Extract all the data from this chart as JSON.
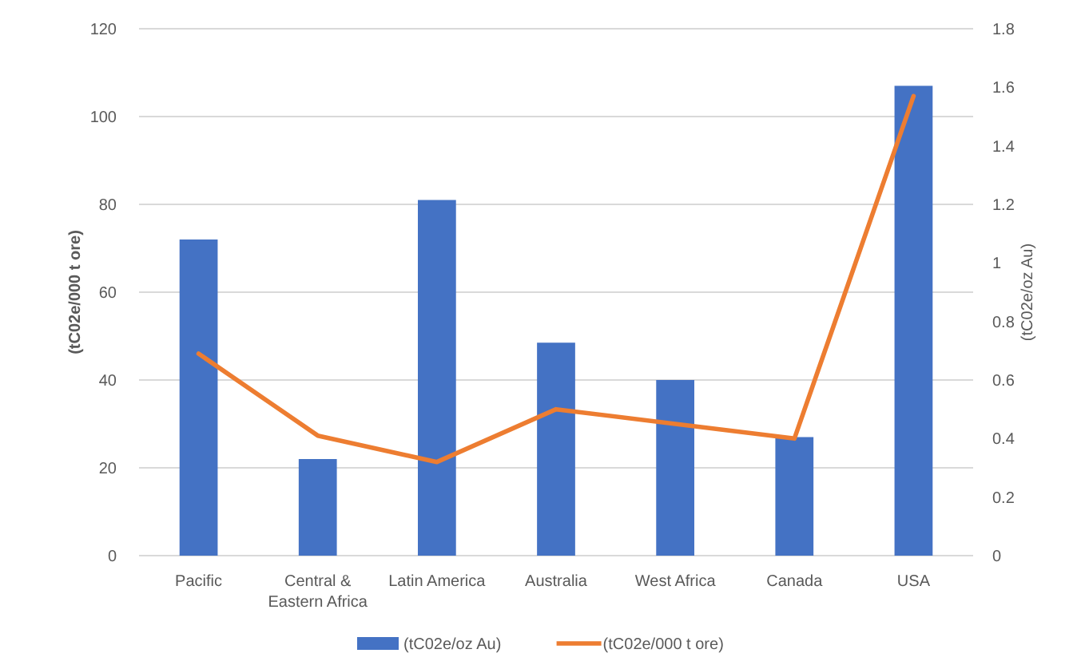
{
  "chart_data": {
    "type": "bar",
    "categories": [
      "Pacific",
      "Central & Eastern Africa",
      "Latin America",
      "Australia",
      "West Africa",
      "Canada",
      "USA"
    ],
    "ylabel": "(tC02e/000 t ore)",
    "y2label": "(tC02e/oz Au)",
    "series": [
      {
        "name": "(tC02e/oz Au)",
        "color": "#4472c4",
        "values": [
          72,
          22,
          81,
          48.5,
          40,
          27,
          107
        ]
      },
      {
        "name": "(tC02e/000 t ore)",
        "type": "line",
        "axis": "y2",
        "color": "#ed7d31",
        "values": [
          0.69,
          0.41,
          0.32,
          0.5,
          0.45,
          0.4,
          1.57
        ]
      }
    ],
    "ylim": [
      0,
      120
    ],
    "yticks": [
      0,
      20,
      40,
      60,
      80,
      100,
      120
    ],
    "y2lim": [
      0,
      1.8
    ],
    "y2ticks": [
      0,
      0.2,
      0.4,
      0.6,
      0.8,
      1,
      1.2,
      1.4,
      1.6,
      1.8
    ],
    "grid": "y",
    "legend": "bottom",
    "marker": "none",
    "line_style": "solid"
  }
}
